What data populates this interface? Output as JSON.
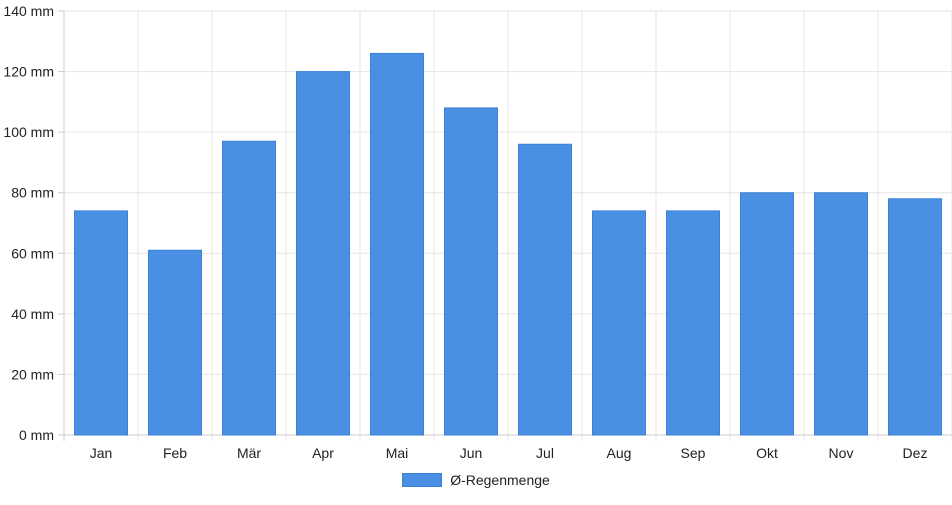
{
  "chart_data": {
    "type": "bar",
    "categories": [
      "Jan",
      "Feb",
      "Mär",
      "Apr",
      "Mai",
      "Jun",
      "Jul",
      "Aug",
      "Sep",
      "Okt",
      "Nov",
      "Dez"
    ],
    "series": [
      {
        "name": "Ø-Regenmenge",
        "values": [
          74,
          61,
          97,
          120,
          126,
          108,
          96,
          74,
          74,
          80,
          80,
          78
        ],
        "color": "#4a90e2"
      }
    ],
    "yticks": [
      "0 mm",
      "20 mm",
      "40 mm",
      "60 mm",
      "80 mm",
      "100 mm",
      "120 mm",
      "140 mm"
    ],
    "ylim": [
      0,
      140
    ],
    "grid": true,
    "legend_position": "bottom-center"
  }
}
